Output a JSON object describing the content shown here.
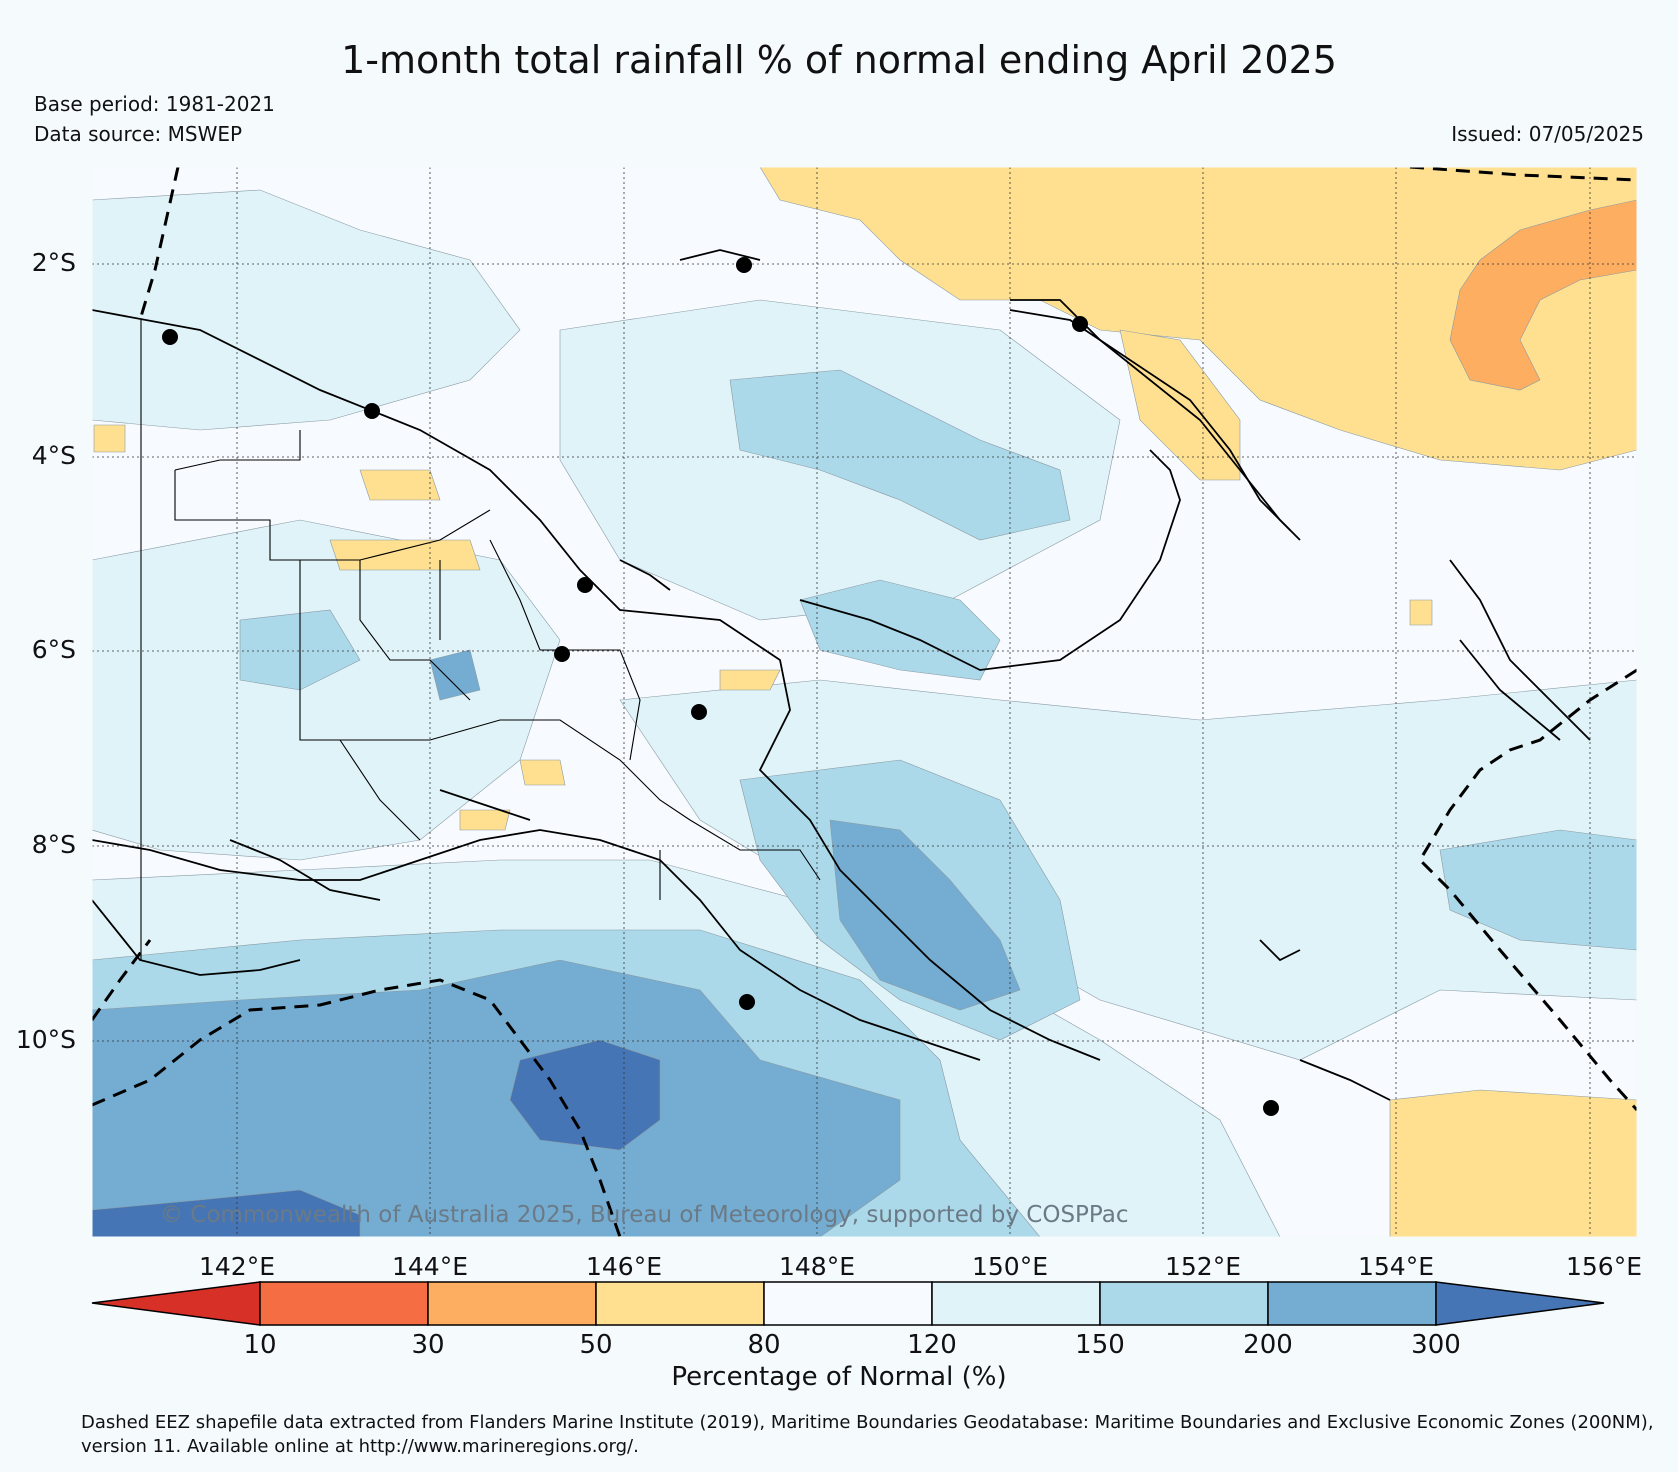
{
  "title": "1-month total rainfall % of normal ending April 2025",
  "base_period": "Base period: 1981-2021",
  "data_source": "Data source: MSWEP",
  "issued": "Issued: 07/05/2025",
  "copyright": "© Commonwealth of Australia 2025, Bureau of Meteorology, supported by COSPPac",
  "lat_labels": [
    "2°S",
    "4°S",
    "6°S",
    "8°S",
    "10°S"
  ],
  "lon_labels": [
    "142°E",
    "144°E",
    "146°E",
    "148°E",
    "150°E",
    "152°E",
    "154°E",
    "156°E"
  ],
  "colorbar": {
    "ticks": [
      "10",
      "30",
      "50",
      "80",
      "120",
      "150",
      "200",
      "300"
    ],
    "colors": [
      "#d73027",
      "#f46d43",
      "#fdae61",
      "#fee090",
      "#f7fbff",
      "#e0f3f8",
      "#abd9e9",
      "#74add1",
      "#4575b4"
    ],
    "label": "Percentage of Normal (%)"
  },
  "footnote": "Dashed EEZ shapefile data extracted from Flanders Marine Institute (2019), Maritime Boundaries Geodatabase: Maritime Boundaries and Exclusive Economic Zones (200NM), version 11. Available online at http://www.marineregions.org/.",
  "map_extent": {
    "lon": [
      140.4,
      156.4
    ],
    "lat": [
      -1.0,
      -12.0
    ]
  }
}
